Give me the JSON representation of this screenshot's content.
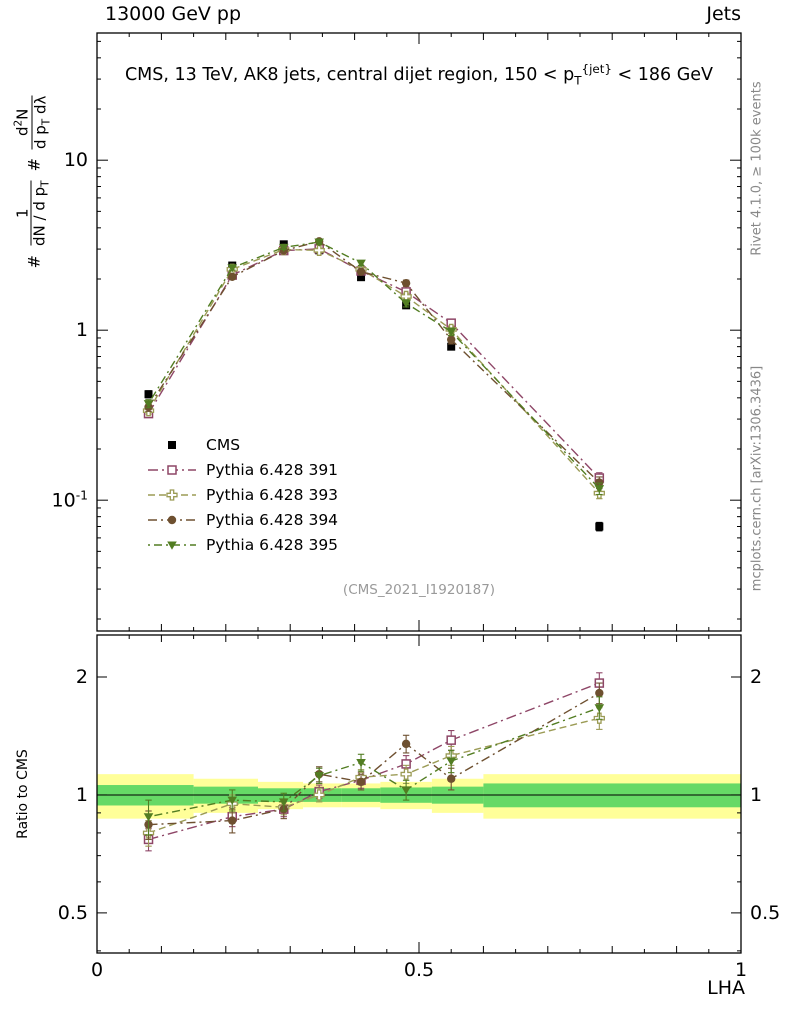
{
  "header": {
    "beam": "13000 GeV pp",
    "process": "Jets"
  },
  "title": "CMS, 13 TeV, AK8 jets, central dijet region, 150 < p_{T}^[{jet}] < 186 GeV",
  "watermark": "(CMS_2021_I1920187)",
  "side_notes": {
    "top_right": "Rivet 4.1.0, ≥ 100k events",
    "bottom_right": "mcplots.cern.ch [arXiv:1306.3436]"
  },
  "axes": {
    "x_label": "LHA",
    "ratio_label": "Ratio to CMS",
    "y_label": {
      "prefix1": "#",
      "num1": "1",
      "den1": "dN / d p_{T}",
      "prefix2": "#",
      "num2": "d^{2}N",
      "den2": "d p_{T} dλ"
    },
    "x_ticks": [
      {
        "v": 0,
        "label": "0"
      },
      {
        "v": 0.5,
        "label": "0.5"
      },
      {
        "v": 1,
        "label": "1"
      }
    ],
    "y_ticks_main": [
      {
        "v": 10,
        "label": "10"
      },
      {
        "v": 1,
        "label": "1"
      },
      {
        "v": 0.1,
        "label": "10^{-1}"
      }
    ],
    "y_ticks_ratio": [
      {
        "v": 2,
        "label": "2"
      },
      {
        "v": 1,
        "label": "1"
      },
      {
        "v": 0.5,
        "label": "0.5"
      }
    ]
  },
  "chart_data": {
    "type": "line",
    "title": "CMS, 13 TeV, AK8 jets, central dijet region, 150 < pT^jet < 186 GeV",
    "xlabel": "LHA",
    "ylabel": "# 1/(dN/dpT) d2N/(dpT dλ)",
    "ratio_ylabel": "Ratio to CMS",
    "legend_position": "middle-left",
    "grid": false,
    "xlim": [
      0,
      1
    ],
    "x": [
      0.08,
      0.21,
      0.29,
      0.345,
      0.41,
      0.48,
      0.55,
      0.78
    ],
    "main": {
      "yscale": "log",
      "ylim": [
        0.017,
        56
      ]
    },
    "ratio": {
      "yscale": "log",
      "ylim": [
        0.395,
        2.56
      ],
      "reference": 1,
      "bands": {
        "edges": [
          0,
          0.15,
          0.25,
          0.32,
          0.38,
          0.44,
          0.52,
          0.6,
          1.0
        ],
        "yellow": [
          [
            0.87,
            1.13
          ],
          [
            0.9,
            1.1
          ],
          [
            0.92,
            1.08
          ],
          [
            0.93,
            1.07
          ],
          [
            0.93,
            1.07
          ],
          [
            0.92,
            1.08
          ],
          [
            0.9,
            1.1
          ],
          [
            0.87,
            1.13
          ]
        ],
        "green": [
          [
            0.94,
            1.06
          ],
          [
            0.95,
            1.05
          ],
          [
            0.96,
            1.04
          ],
          [
            0.96,
            1.04
          ],
          [
            0.96,
            1.04
          ],
          [
            0.955,
            1.045
          ],
          [
            0.95,
            1.05
          ],
          [
            0.93,
            1.07
          ]
        ],
        "yellow_color": "#ffff99",
        "green_color": "#66d966"
      }
    },
    "series": [
      {
        "name": "CMS",
        "marker": "filled-square",
        "color": "#000000",
        "dash": null,
        "values": [
          0.42,
          2.4,
          3.2,
          2.95,
          2.05,
          1.4,
          0.8,
          0.07
        ],
        "yerr": [
          0.02,
          0.08,
          0.1,
          0.09,
          0.07,
          0.05,
          0.03,
          0.004
        ],
        "ratio": null,
        "ratio_err": null
      },
      {
        "name": "Pythia 6.428 391",
        "marker": "open-square",
        "color": "#8e4667",
        "dash": "10 4 2 4",
        "values": [
          0.323,
          2.11,
          2.94,
          3.01,
          2.23,
          1.68,
          1.1,
          0.135
        ],
        "yerr": [
          0.015,
          0.07,
          0.09,
          0.09,
          0.08,
          0.07,
          0.05,
          0.01
        ],
        "ratio": [
          0.77,
          0.88,
          0.92,
          1.02,
          1.09,
          1.2,
          1.38,
          1.93
        ],
        "ratio_err": [
          0.05,
          0.05,
          0.04,
          0.04,
          0.05,
          0.06,
          0.08,
          0.12
        ]
      },
      {
        "name": "Pythia 6.428 393",
        "marker": "open-cross",
        "color": "#9b9b55",
        "dash": "7 4",
        "values": [
          0.336,
          2.28,
          2.98,
          2.95,
          2.28,
          1.58,
          1.01,
          0.11
        ],
        "yerr": [
          0.015,
          0.07,
          0.09,
          0.09,
          0.08,
          0.07,
          0.05,
          0.008
        ],
        "ratio": [
          0.8,
          0.95,
          0.93,
          1.0,
          1.11,
          1.13,
          1.26,
          1.57
        ],
        "ratio_err": [
          0.06,
          0.05,
          0.04,
          0.04,
          0.05,
          0.06,
          0.07,
          0.1
        ]
      },
      {
        "name": "Pythia 6.428 394",
        "marker": "filled-circle",
        "color": "#6e5030",
        "dash": "9 4 2 4",
        "values": [
          0.353,
          2.06,
          2.94,
          3.33,
          2.21,
          1.89,
          0.88,
          0.127
        ],
        "yerr": [
          0.02,
          0.07,
          0.09,
          0.1,
          0.08,
          0.08,
          0.05,
          0.01
        ],
        "ratio": [
          0.84,
          0.86,
          0.92,
          1.13,
          1.08,
          1.35,
          1.1,
          1.82
        ],
        "ratio_err": [
          0.07,
          0.06,
          0.05,
          0.05,
          0.05,
          0.07,
          0.07,
          0.11
        ]
      },
      {
        "name": "Pythia 6.428 395",
        "marker": "filled-triangle-down",
        "color": "#527d22",
        "dash": "2 4 8 4",
        "values": [
          0.37,
          2.33,
          3.07,
          3.3,
          2.48,
          1.44,
          0.98,
          0.117
        ],
        "yerr": [
          0.02,
          0.07,
          0.09,
          0.1,
          0.08,
          0.07,
          0.05,
          0.009
        ],
        "ratio": [
          0.88,
          0.97,
          0.96,
          1.12,
          1.21,
          1.03,
          1.22,
          1.67
        ],
        "ratio_err": [
          0.09,
          0.06,
          0.05,
          0.05,
          0.06,
          0.06,
          0.08,
          0.11
        ]
      }
    ]
  }
}
